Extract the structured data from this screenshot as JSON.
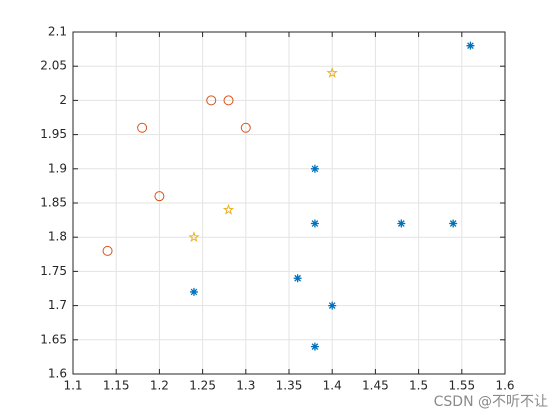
{
  "chart_data": {
    "type": "scatter",
    "xlim": [
      1.1,
      1.6
    ],
    "xticks": [
      1.1,
      1.15,
      1.2,
      1.25,
      1.3,
      1.35,
      1.4,
      1.45,
      1.5,
      1.55,
      1.6
    ],
    "ylim": [
      1.6,
      2.1
    ],
    "yticks": [
      1.6,
      1.65,
      1.7,
      1.75,
      1.8,
      1.85,
      1.9,
      1.95,
      2,
      2.05,
      2.1
    ],
    "grid": true,
    "series": [
      {
        "color": "#D95319",
        "marker": "o",
        "x": [
          1.14,
          1.18,
          1.2,
          1.26,
          1.28,
          1.3
        ],
        "values": [
          1.78,
          1.96,
          1.86,
          2,
          2,
          1.96
        ]
      },
      {
        "color": "#EDB120",
        "marker": "pentagram",
        "x": [
          1.24,
          1.28,
          1.4
        ],
        "values": [
          1.8,
          1.84,
          2.04
        ]
      },
      {
        "color": "#0072BD",
        "marker": "*",
        "x": [
          1.24,
          1.36,
          1.38,
          1.38,
          1.38,
          1.4,
          1.48,
          1.54,
          1.56
        ],
        "values": [
          1.72,
          1.74,
          1.9,
          1.82,
          1.64,
          1.7,
          1.82,
          1.82,
          2.08
        ]
      }
    ]
  },
  "watermark": "CSDN @不听不让"
}
